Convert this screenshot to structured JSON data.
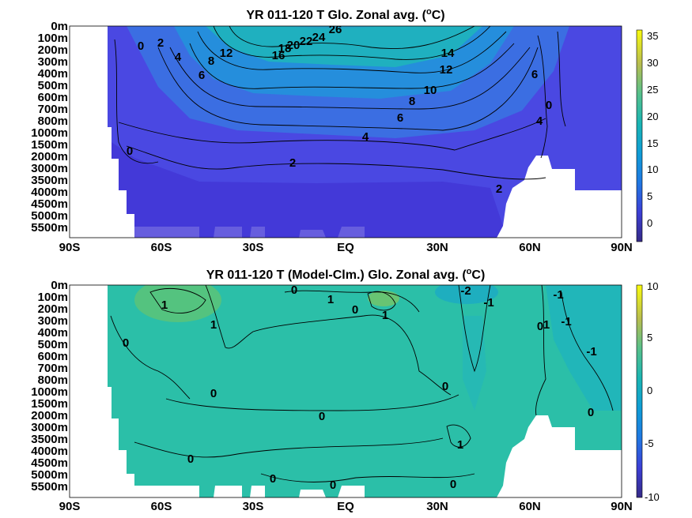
{
  "chart_data": [
    {
      "type": "heatmap",
      "title_main": "YR 011-120 T Glo. Zonal avg. (",
      "title_sup": "o",
      "title_unit": "C)",
      "x_ticks": [
        "90S",
        "60S",
        "30S",
        "EQ",
        "30N",
        "60N",
        "90N"
      ],
      "y_ticks": [
        "0m",
        "100m",
        "200m",
        "300m",
        "400m",
        "500m",
        "600m",
        "700m",
        "800m",
        "1000m",
        "1500m",
        "2000m",
        "3000m",
        "3500m",
        "4000m",
        "4500m",
        "5000m",
        "5500m"
      ],
      "colorbar_ticks": [
        "35",
        "30",
        "25",
        "20",
        "15",
        "10",
        "5",
        "0"
      ],
      "colorbar_range": [
        -3,
        36
      ],
      "colormap": "parula",
      "contour_labels": [
        "26",
        "24",
        "22",
        "20",
        "18",
        "16",
        "14",
        "12",
        "12",
        "10",
        "8",
        "8",
        "6",
        "6",
        "4",
        "4",
        "2",
        "2",
        "2",
        "0",
        "0",
        "0",
        "6",
        "4"
      ]
    },
    {
      "type": "heatmap",
      "title_main": "YR 011-120 T (Model-Clm.) Glo. Zonal avg. (",
      "title_sup": "o",
      "title_unit": "C)",
      "x_ticks": [
        "90S",
        "60S",
        "30S",
        "EQ",
        "30N",
        "60N",
        "90N"
      ],
      "y_ticks": [
        "0m",
        "100m",
        "200m",
        "300m",
        "400m",
        "500m",
        "600m",
        "700m",
        "800m",
        "1000m",
        "1500m",
        "2000m",
        "3000m",
        "3500m",
        "4000m",
        "4500m",
        "5000m",
        "5500m"
      ],
      "colorbar_ticks": [
        "10",
        "5",
        "0",
        "-5",
        "-10"
      ],
      "colorbar_range": [
        -10,
        10
      ],
      "colormap": "parula",
      "contour_labels": [
        "0",
        "1",
        "0",
        "1",
        "1",
        "-2",
        "-1",
        "1",
        "0",
        "0",
        "1",
        "0",
        "0",
        "-1",
        "-1",
        "0",
        "0",
        "0",
        "1",
        "0",
        "0",
        "0",
        "-1"
      ]
    }
  ]
}
